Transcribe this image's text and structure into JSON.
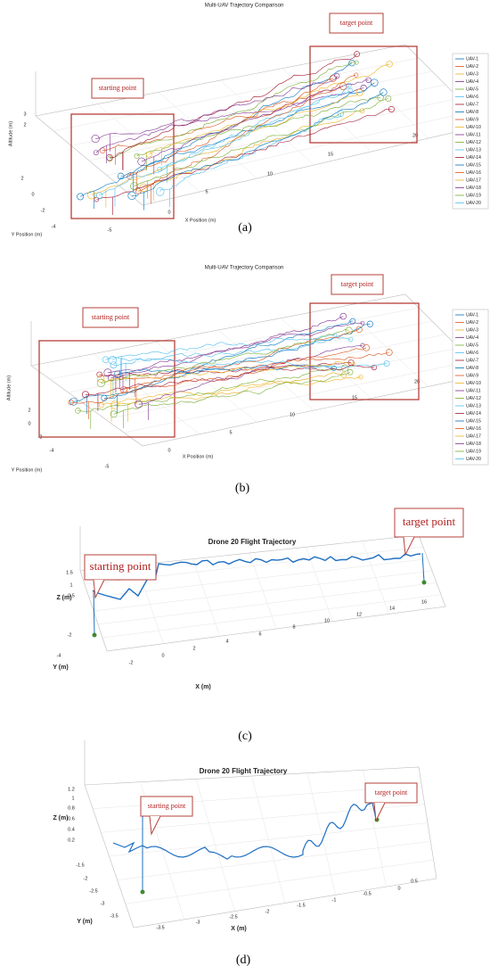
{
  "panels": [
    {
      "label": "(a)",
      "title": "Multi-UAV Trajectory Comparison",
      "x_axis_label": "X Position (m)",
      "y_axis_label": "Y Position (m)",
      "z_axis_label": "Altitude (m)",
      "x_ticks": [
        "-5",
        "0",
        "5",
        "10",
        "15",
        "20"
      ],
      "y_ticks": [
        "2",
        "0",
        "-2",
        "-4"
      ],
      "z_ticks": [
        "3",
        "2"
      ],
      "annotations": [
        "starting point",
        "target point"
      ],
      "legend": [
        {
          "name": "UAV-1",
          "color": "#0072bd"
        },
        {
          "name": "UAV-2",
          "color": "#d95319"
        },
        {
          "name": "UAV-3",
          "color": "#edb120"
        },
        {
          "name": "UAV-4",
          "color": "#7e2f8e"
        },
        {
          "name": "UAV-5",
          "color": "#77ac30"
        },
        {
          "name": "UAV-6",
          "color": "#4dbeee"
        },
        {
          "name": "UAV-7",
          "color": "#a2142f"
        },
        {
          "name": "UAV-8",
          "color": "#0072bd"
        },
        {
          "name": "UAV-9",
          "color": "#d95319"
        },
        {
          "name": "UAV-10",
          "color": "#edb120"
        },
        {
          "name": "UAV-11",
          "color": "#7e2f8e"
        },
        {
          "name": "UAV-12",
          "color": "#77ac30"
        },
        {
          "name": "UAV-13",
          "color": "#4dbeee"
        },
        {
          "name": "UAV-14",
          "color": "#a2142f"
        },
        {
          "name": "UAV-15",
          "color": "#0072bd"
        },
        {
          "name": "UAV-16",
          "color": "#d95319"
        },
        {
          "name": "UAV-17",
          "color": "#edb120"
        },
        {
          "name": "UAV-18",
          "color": "#7e2f8e"
        },
        {
          "name": "UAV-19",
          "color": "#77ac30"
        },
        {
          "name": "UAV-20",
          "color": "#4dbeee"
        }
      ]
    },
    {
      "label": "(b)",
      "title": "Multi-UAV Trajectory Comparison",
      "x_axis_label": "X Position (m)",
      "y_axis_label": "Y Position (m)",
      "z_axis_label": "Altitude (m)",
      "x_ticks": [
        "-5",
        "0",
        "5",
        "10",
        "15",
        "20"
      ],
      "y_ticks": [
        "2",
        "0",
        "-2",
        "-4"
      ],
      "z_ticks": [],
      "annotations": [
        "starting point",
        "target point"
      ],
      "legend": [
        {
          "name": "UAV-1",
          "color": "#0072bd"
        },
        {
          "name": "UAV-2",
          "color": "#d95319"
        },
        {
          "name": "UAV-3",
          "color": "#edb120"
        },
        {
          "name": "UAV-4",
          "color": "#7e2f8e"
        },
        {
          "name": "UAV-5",
          "color": "#77ac30"
        },
        {
          "name": "UAV-6",
          "color": "#4dbeee"
        },
        {
          "name": "UAV-7",
          "color": "#a2142f"
        },
        {
          "name": "UAV-8",
          "color": "#0072bd"
        },
        {
          "name": "UAV-9",
          "color": "#d95319"
        },
        {
          "name": "UAV-10",
          "color": "#edb120"
        },
        {
          "name": "UAV-11",
          "color": "#7e2f8e"
        },
        {
          "name": "UAV-12",
          "color": "#77ac30"
        },
        {
          "name": "UAV-13",
          "color": "#4dbeee"
        },
        {
          "name": "UAV-14",
          "color": "#a2142f"
        },
        {
          "name": "UAV-15",
          "color": "#0072bd"
        },
        {
          "name": "UAV-16",
          "color": "#d95319"
        },
        {
          "name": "UAV-17",
          "color": "#edb120"
        },
        {
          "name": "UAV-18",
          "color": "#7e2f8e"
        },
        {
          "name": "UAV-19",
          "color": "#77ac30"
        },
        {
          "name": "UAV-20",
          "color": "#4dbeee"
        }
      ]
    },
    {
      "label": "(c)",
      "title": "Drone 20 Flight Trajectory",
      "x_axis_label": "X (m)",
      "y_axis_label": "Y (m)",
      "z_axis_label": "Z (m)",
      "x_ticks": [
        "-2",
        "0",
        "2",
        "4",
        "6",
        "8",
        "10",
        "12",
        "14",
        "16"
      ],
      "y_ticks": [
        "-2",
        "-4"
      ],
      "z_ticks": [
        "1.5",
        "1",
        "0.5"
      ],
      "annotations": [
        "starting point",
        "target point"
      ],
      "legend": []
    },
    {
      "label": "(d)",
      "title": "Drone 20 Flight Trajectory",
      "x_axis_label": "X (m)",
      "y_axis_label": "Y (m)",
      "z_axis_label": "Z (m)",
      "x_ticks": [
        "-3.5",
        "-3",
        "-2.5",
        "-2",
        "-1.5",
        "-1",
        "-0.5",
        "0",
        "0.5"
      ],
      "y_ticks": [
        "-1.5",
        "-2",
        "-2.5",
        "-3",
        "-3.5"
      ],
      "z_ticks": [
        "1.2",
        "1",
        "0.8",
        "0.6",
        "0.4",
        "0.2"
      ],
      "annotations": [
        "starting point",
        "target point"
      ],
      "legend": []
    }
  ]
}
